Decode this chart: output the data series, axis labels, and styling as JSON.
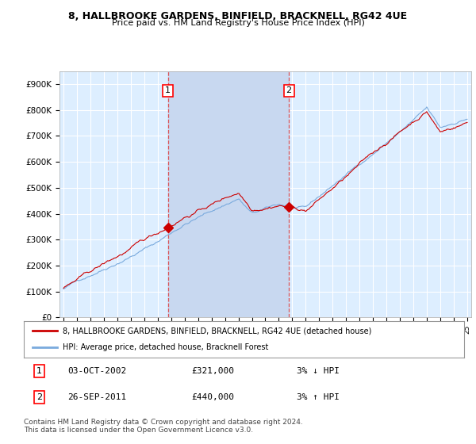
{
  "title": "8, HALLBROOKE GARDENS, BINFIELD, BRACKNELL, RG42 4UE",
  "subtitle": "Price paid vs. HM Land Registry's House Price Index (HPI)",
  "ylim": [
    0,
    950000
  ],
  "yticks": [
    0,
    100000,
    200000,
    300000,
    400000,
    500000,
    600000,
    700000,
    800000,
    900000
  ],
  "ytick_labels": [
    "£0",
    "£100K",
    "£200K",
    "£300K",
    "£400K",
    "£500K",
    "£600K",
    "£700K",
    "£800K",
    "£900K"
  ],
  "background_color": "#ffffff",
  "plot_bg_color": "#ddeeff",
  "grid_color": "#ffffff",
  "hpi_color": "#7aaadd",
  "price_color": "#cc0000",
  "shade_color": "#c8d8f0",
  "transaction1_year": 2002.75,
  "transaction1_price": 321000,
  "transaction2_year": 2011.75,
  "transaction2_price": 440000,
  "vline_color": "#dd4444",
  "legend_label_red": "8, HALLBROOKE GARDENS, BINFIELD, BRACKNELL, RG42 4UE (detached house)",
  "legend_label_blue": "HPI: Average price, detached house, Bracknell Forest",
  "table_row1": [
    "1",
    "03-OCT-2002",
    "£321,000",
    "3% ↓ HPI"
  ],
  "table_row2": [
    "2",
    "26-SEP-2011",
    "£440,000",
    "3% ↑ HPI"
  ],
  "footnote": "Contains HM Land Registry data © Crown copyright and database right 2024.\nThis data is licensed under the Open Government Licence v3.0.",
  "start_year": 1995,
  "end_year": 2025
}
